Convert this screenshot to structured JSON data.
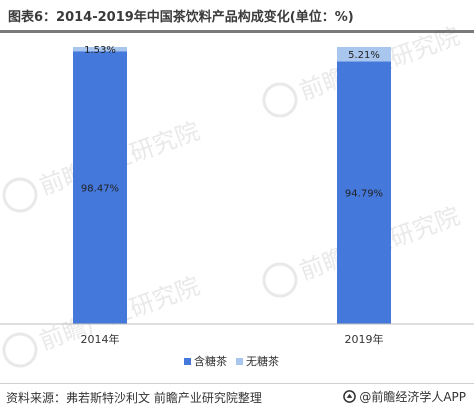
{
  "title": "图表6：2014-2019年中国茶饮料产品构成变化(单位：%)",
  "source": "资料来源：弗若斯特沙利文 前瞻产业研究院整理",
  "brand": "@前瞻经济学人APP",
  "watermark": "前瞻产业研究院",
  "colors": {
    "sugar": "#4478DB",
    "sugar_free": "#A9C6EE",
    "axis": "#bfbfbf",
    "background": "#ffffff"
  },
  "chart_data": {
    "type": "bar",
    "stacked": true,
    "categories": [
      "2014年",
      "2019年"
    ],
    "series": [
      {
        "name": "含糖茶",
        "values": [
          98.47,
          94.79
        ],
        "labels": [
          "98.47%",
          "94.79%"
        ]
      },
      {
        "name": "无糖茶",
        "values": [
          1.53,
          5.21
        ],
        "labels": [
          "1.53%",
          "5.21%"
        ]
      }
    ],
    "ylim": [
      0,
      100
    ],
    "grid": false,
    "legend": "bottom-center"
  }
}
